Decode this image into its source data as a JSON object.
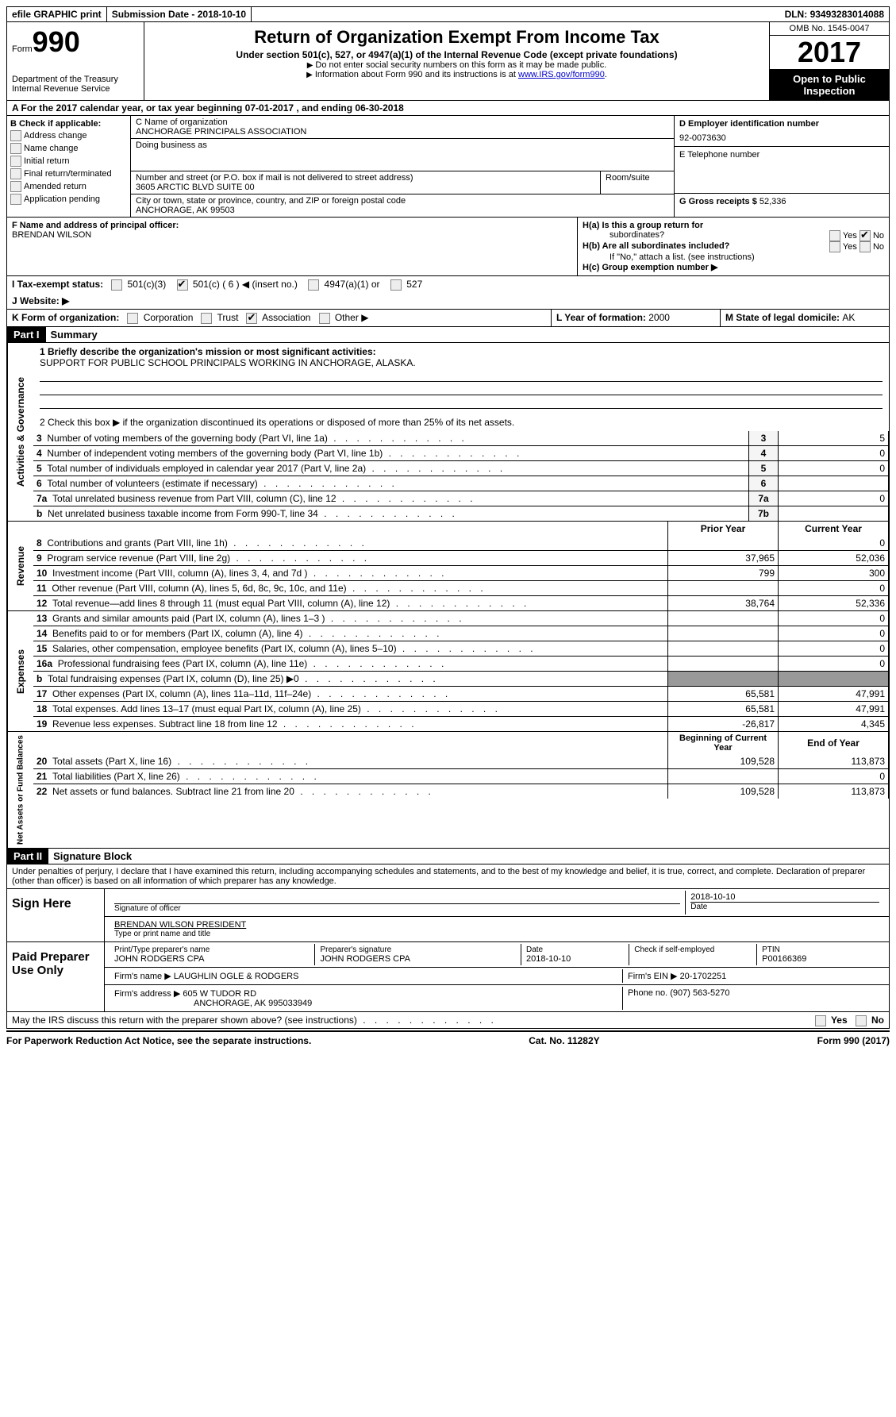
{
  "topbar": {
    "efile": "efile GRAPHIC print",
    "submission_label": "Submission Date - ",
    "submission_date": "2018-10-10",
    "dln_label": "DLN: ",
    "dln": "93493283014088"
  },
  "header": {
    "form_prefix": "Form",
    "form_number": "990",
    "dept": "Department of the Treasury",
    "irs": "Internal Revenue Service",
    "title": "Return of Organization Exempt From Income Tax",
    "subtitle": "Under section 501(c), 527, or 4947(a)(1) of the Internal Revenue Code (except private foundations)",
    "note1": "Do not enter social security numbers on this form as it may be made public.",
    "note2_prefix": "Information about Form 990 and its instructions is at ",
    "note2_link": "www.IRS.gov/form990",
    "omb": "OMB No. 1545-0047",
    "year": "2017",
    "open": "Open to Public Inspection"
  },
  "sectionA": {
    "text_prefix": "A  For the 2017 calendar year, or tax year beginning ",
    "begin": "07-01-2017",
    "mid": "   , and ending ",
    "end": "06-30-2018"
  },
  "colB": {
    "header": "B Check if applicable:",
    "items": [
      "Address change",
      "Name change",
      "Initial return",
      "Final return/terminated",
      "Amended return",
      "Application pending"
    ]
  },
  "colC": {
    "name_label": "C Name of organization",
    "name": "ANCHORAGE PRINCIPALS ASSOCIATION",
    "dba_label": "Doing business as",
    "addr_row": {
      "label": "Number and street (or P.O. box if mail is not delivered to street address)",
      "room": "Room/suite",
      "value": "3605 ARCTIC BLVD SUITE 00"
    },
    "city_label": "City or town, state or province, country, and ZIP or foreign postal code",
    "city": "ANCHORAGE, AK  99503"
  },
  "colD": {
    "ein_label": "D Employer identification number",
    "ein": "92-0073630",
    "phone_label": "E Telephone number",
    "gross_label": "G Gross receipts $ ",
    "gross": "52,336"
  },
  "rowF": {
    "label": "F  Name and address of principal officer:",
    "name": "BRENDAN WILSON"
  },
  "rowH": {
    "ha": "H(a)  Is this a group return for",
    "ha2": "subordinates?",
    "hb": "H(b)  Are all subordinates included?",
    "hb_note": "If \"No,\" attach a list. (see instructions)",
    "hc": "H(c)  Group exemption number ▶",
    "yes": "Yes",
    "no": "No"
  },
  "rowI": {
    "label": "I  Tax-exempt status:",
    "opt1": "501(c)(3)",
    "opt2": "501(c) ( 6 ) ◀ (insert no.)",
    "opt3": "4947(a)(1) or",
    "opt4": "527"
  },
  "rowJ": {
    "label": "J  Website: ▶"
  },
  "rowK": {
    "label": "K Form of organization:",
    "opts": [
      "Corporation",
      "Trust",
      "Association",
      "Other ▶"
    ],
    "checked_index": 2
  },
  "rowLM": {
    "l_label": "L Year of formation: ",
    "l_val": "2000",
    "m_label": "M State of legal domicile: ",
    "m_val": "AK"
  },
  "part1": {
    "header": "Part I",
    "title": "Summary",
    "governance_label": "Activities & Governance",
    "revenue_label": "Revenue",
    "expenses_label": "Expenses",
    "netassets_label": "Net Assets or Fund Balances",
    "line1_label": "1  Briefly describe the organization's mission or most significant activities:",
    "line1_val": "SUPPORT FOR PUBLIC SCHOOL PRINCIPALS WORKING IN ANCHORAGE, ALASKA.",
    "line2": "2   Check this box ▶        if the organization discontinued its operations or disposed of more than 25% of its net assets.",
    "gov_lines": [
      {
        "n": "3",
        "desc": "Number of voting members of the governing body (Part VI, line 1a)",
        "box": "3",
        "val": "5"
      },
      {
        "n": "4",
        "desc": "Number of independent voting members of the governing body (Part VI, line 1b)",
        "box": "4",
        "val": "0"
      },
      {
        "n": "5",
        "desc": "Total number of individuals employed in calendar year 2017 (Part V, line 2a)",
        "box": "5",
        "val": "0"
      },
      {
        "n": "6",
        "desc": "Total number of volunteers (estimate if necessary)",
        "box": "6",
        "val": ""
      },
      {
        "n": "7a",
        "desc": "Total unrelated business revenue from Part VIII, column (C), line 12",
        "box": "7a",
        "val": "0"
      },
      {
        "n": "b",
        "desc": "Net unrelated business taxable income from Form 990-T, line 34",
        "box": "7b",
        "val": ""
      }
    ],
    "col_headers": {
      "prior": "Prior Year",
      "current": "Current Year",
      "bcy": "Beginning of Current Year",
      "eoy": "End of Year"
    },
    "rev_lines": [
      {
        "n": "8",
        "desc": "Contributions and grants (Part VIII, line 1h)",
        "prior": "",
        "curr": "0"
      },
      {
        "n": "9",
        "desc": "Program service revenue (Part VIII, line 2g)",
        "prior": "37,965",
        "curr": "52,036"
      },
      {
        "n": "10",
        "desc": "Investment income (Part VIII, column (A), lines 3, 4, and 7d )",
        "prior": "799",
        "curr": "300"
      },
      {
        "n": "11",
        "desc": "Other revenue (Part VIII, column (A), lines 5, 6d, 8c, 9c, 10c, and 11e)",
        "prior": "",
        "curr": "0"
      },
      {
        "n": "12",
        "desc": "Total revenue—add lines 8 through 11 (must equal Part VIII, column (A), line 12)",
        "prior": "38,764",
        "curr": "52,336"
      }
    ],
    "exp_lines": [
      {
        "n": "13",
        "desc": "Grants and similar amounts paid (Part IX, column (A), lines 1–3 )",
        "prior": "",
        "curr": "0"
      },
      {
        "n": "14",
        "desc": "Benefits paid to or for members (Part IX, column (A), line 4)",
        "prior": "",
        "curr": "0"
      },
      {
        "n": "15",
        "desc": "Salaries, other compensation, employee benefits (Part IX, column (A), lines 5–10)",
        "prior": "",
        "curr": "0"
      },
      {
        "n": "16a",
        "desc": "Professional fundraising fees (Part IX, column (A), line 11e)",
        "prior": "",
        "curr": "0"
      },
      {
        "n": "b",
        "desc": "Total fundraising expenses (Part IX, column (D), line 25) ▶0",
        "prior": "SHADED",
        "curr": "SHADED"
      },
      {
        "n": "17",
        "desc": "Other expenses (Part IX, column (A), lines 11a–11d, 11f–24e)",
        "prior": "65,581",
        "curr": "47,991"
      },
      {
        "n": "18",
        "desc": "Total expenses. Add lines 13–17 (must equal Part IX, column (A), line 25)",
        "prior": "65,581",
        "curr": "47,991"
      },
      {
        "n": "19",
        "desc": "Revenue less expenses. Subtract line 18 from line 12",
        "prior": "-26,817",
        "curr": "4,345"
      }
    ],
    "net_lines": [
      {
        "n": "20",
        "desc": "Total assets (Part X, line 16)",
        "prior": "109,528",
        "curr": "113,873"
      },
      {
        "n": "21",
        "desc": "Total liabilities (Part X, line 26)",
        "prior": "",
        "curr": "0"
      },
      {
        "n": "22",
        "desc": "Net assets or fund balances. Subtract line 21 from line 20",
        "prior": "109,528",
        "curr": "113,873"
      }
    ]
  },
  "part2": {
    "header": "Part II",
    "title": "Signature Block",
    "perjury": "Under penalties of perjury, I declare that I have examined this return, including accompanying schedules and statements, and to the best of my knowledge and belief, it is true, correct, and complete. Declaration of preparer (other than officer) is based on all information of which preparer has any knowledge.",
    "sign_here": "Sign Here",
    "sig_officer": "Signature of officer",
    "sig_date": "2018-10-10",
    "date_label": "Date",
    "officer_name": "BRENDAN WILSON PRESIDENT",
    "type_name": "Type or print name and title",
    "paid_label": "Paid Preparer Use Only",
    "prep_name_label": "Print/Type preparer's name",
    "prep_name": "JOHN RODGERS CPA",
    "prep_sig_label": "Preparer's signature",
    "prep_sig": "JOHN RODGERS CPA",
    "prep_date": "2018-10-10",
    "self_emp": "Check        if self-employed",
    "ptin_label": "PTIN",
    "ptin": "P00166369",
    "firm_name_label": "Firm's name     ▶ ",
    "firm_name": "LAUGHLIN OGLE & RODGERS",
    "firm_ein_label": "Firm's EIN ▶ ",
    "firm_ein": "20-1702251",
    "firm_addr_label": "Firm's address ▶ ",
    "firm_addr": "605 W TUDOR RD",
    "firm_city": "ANCHORAGE, AK  995033949",
    "phone_label": "Phone no. ",
    "phone": "(907) 563-5270",
    "discuss": "May the IRS discuss this return with the preparer shown above? (see instructions)"
  },
  "footer": {
    "left": "For Paperwork Reduction Act Notice, see the separate instructions.",
    "mid": "Cat. No. 11282Y",
    "right_prefix": "Form ",
    "right_form": "990",
    "right_suffix": " (2017)"
  }
}
